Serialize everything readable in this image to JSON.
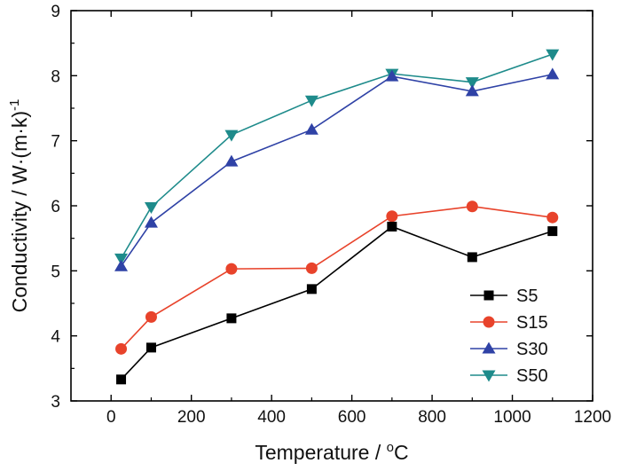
{
  "chart_data": {
    "type": "line",
    "xlabel": "Temperature / ",
    "xlabel_unit_sup": "o",
    "xlabel_unit": "C",
    "ylabel": "Conductivity / W·(m·k)",
    "ylabel_sup": "-1",
    "xlim": [
      -100,
      1200
    ],
    "ylim": [
      3,
      9
    ],
    "x_ticks": [
      0,
      200,
      400,
      600,
      800,
      1000,
      1200
    ],
    "y_ticks": [
      3,
      4,
      5,
      6,
      7,
      8,
      9
    ],
    "legend_position": "bottom-right",
    "grid": false,
    "series": [
      {
        "name": "S5",
        "color": "#000000",
        "marker": "square",
        "x": [
          25,
          100,
          300,
          500,
          700,
          900,
          1100
        ],
        "y": [
          3.33,
          3.82,
          4.27,
          4.72,
          5.68,
          5.21,
          5.61
        ]
      },
      {
        "name": "S15",
        "color": "#e8432b",
        "marker": "circle",
        "x": [
          25,
          100,
          300,
          500,
          700,
          900,
          1100
        ],
        "y": [
          3.8,
          4.29,
          5.03,
          5.04,
          5.84,
          5.99,
          5.82
        ]
      },
      {
        "name": "S30",
        "color": "#2f42a6",
        "marker": "triangle-up",
        "x": [
          25,
          100,
          300,
          500,
          700,
          900,
          1100
        ],
        "y": [
          5.07,
          5.74,
          6.68,
          7.17,
          7.99,
          7.76,
          8.02
        ]
      },
      {
        "name": "S50",
        "color": "#1e8b8b",
        "marker": "triangle-down",
        "x": [
          25,
          100,
          300,
          500,
          700,
          900,
          1100
        ],
        "y": [
          5.19,
          5.98,
          7.09,
          7.62,
          8.03,
          7.9,
          8.33
        ]
      }
    ]
  }
}
